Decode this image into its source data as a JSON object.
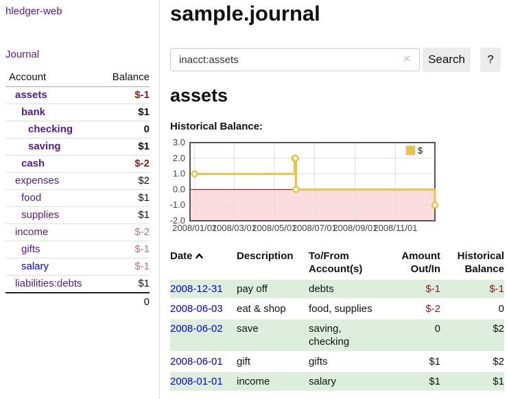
{
  "brand": "hledger-web",
  "sidebar": {
    "journal_link": "Journal",
    "accounts": {
      "col_account": "Account",
      "col_balance": "Balance",
      "rows": [
        {
          "name": "assets",
          "depth": 1,
          "bold": true,
          "balance": "$-1"
        },
        {
          "name": "bank",
          "depth": 2,
          "bold": true,
          "balance": "$1"
        },
        {
          "name": "checking",
          "depth": 3,
          "bold": true,
          "balance": "0"
        },
        {
          "name": "saving",
          "depth": 3,
          "bold": true,
          "balance": "$1"
        },
        {
          "name": "cash",
          "depth": 2,
          "bold": true,
          "balance": "$-2"
        },
        {
          "name": "expenses",
          "depth": 1,
          "bold": false,
          "balance": "$2"
        },
        {
          "name": "food",
          "depth": 2,
          "bold": false,
          "balance": "$1"
        },
        {
          "name": "supplies",
          "depth": 2,
          "bold": false,
          "balance": "$1"
        },
        {
          "name": "income",
          "depth": 1,
          "bold": false,
          "balance": "$-2"
        },
        {
          "name": "gifts",
          "depth": 2,
          "bold": false,
          "balance": "$-1"
        },
        {
          "name": "salary",
          "depth": 2,
          "bold": false,
          "balance": "$-1"
        },
        {
          "name": "liabilities:debts",
          "depth": 1,
          "bold": false,
          "balance": "$1"
        }
      ],
      "total": "0"
    }
  },
  "main": {
    "title": "sample.journal",
    "search": {
      "value": "inacct:assets",
      "clear_icon": "×",
      "button_label": "Search",
      "help_label": "?"
    },
    "account_heading": "assets",
    "chart_title": "Historical Balance:"
  },
  "chart_data": {
    "type": "line",
    "title": "Historical Balance",
    "step": true,
    "series": [
      {
        "name": "$",
        "color": "#EDC240",
        "points": [
          {
            "date": "2008/01/01",
            "day": 0,
            "value": 1
          },
          {
            "date": "2008/06/01",
            "day": 152,
            "value": 2
          },
          {
            "date": "2008/06/02",
            "day": 153,
            "value": 2
          },
          {
            "date": "2008/06/03",
            "day": 154,
            "value": 0
          },
          {
            "date": "2008/12/31",
            "day": 365,
            "value": -1
          }
        ]
      }
    ],
    "xticks": [
      {
        "label": "2008/01/01",
        "day": 0
      },
      {
        "label": "2008/03/01",
        "day": 60
      },
      {
        "label": "2008/05/01",
        "day": 121
      },
      {
        "label": "2008/07/01",
        "day": 182
      },
      {
        "label": "2008/09/01",
        "day": 244
      },
      {
        "label": "2008/11/01",
        "day": 305
      }
    ],
    "yticks": [
      "3.0",
      "2.0",
      "1.0",
      "0.0",
      "-1.0",
      "-2.0"
    ],
    "ylim": [
      -2,
      3
    ],
    "xlim_days": [
      -7,
      365
    ],
    "grid": true,
    "legend_position": "top-right",
    "negative_fill": "#fcdcdc",
    "zero_line_color": "#8b0000"
  },
  "transactions": {
    "col_date": "Date",
    "col_description": "Description",
    "col_tofrom": "To/From\nAccount(s)",
    "col_amount": "Amount\nOut/In",
    "col_balance": "Historical\nBalance",
    "rows": [
      {
        "date": "2008-12-31",
        "description": "pay off",
        "tofrom": "debts",
        "amount": "$-1",
        "balance": "$-1"
      },
      {
        "date": "2008-06-03",
        "description": "eat & shop",
        "tofrom": "food, supplies",
        "amount": "$-2",
        "balance": "0"
      },
      {
        "date": "2008-06-02",
        "description": "save",
        "tofrom": "saving,\nchecking",
        "amount": "0",
        "balance": "$2"
      },
      {
        "date": "2008-06-01",
        "description": "gift",
        "tofrom": "gifts",
        "amount": "$1",
        "balance": "$2"
      },
      {
        "date": "2008-01-01",
        "description": "income",
        "tofrom": "salary",
        "amount": "$1",
        "balance": "$1"
      }
    ]
  }
}
